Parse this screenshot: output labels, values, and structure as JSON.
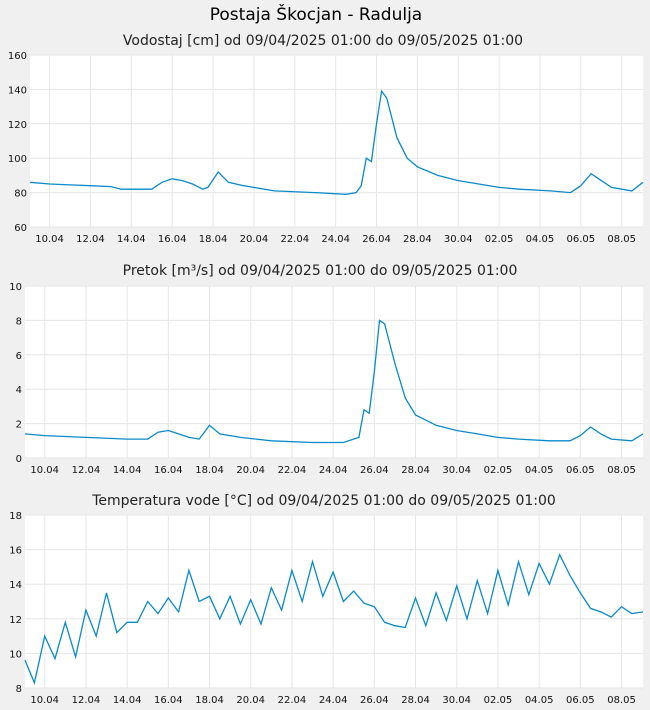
{
  "figure": {
    "title": "Postaja Škocjan - Radulja"
  },
  "style": {
    "background": "#f0f0f0",
    "plot_background": "#ffffff",
    "line_color": "#0a8acb",
    "grid_color": "#e6e6e6"
  },
  "x_ticks": [
    "10.04",
    "12.04",
    "14.04",
    "16.04",
    "18.04",
    "20.04",
    "22.04",
    "24.04",
    "26.04",
    "28.04",
    "30.04",
    "02.05",
    "04.05",
    "06.05",
    "08.05"
  ],
  "chart_data": [
    {
      "type": "line",
      "title": "Vodostaj [cm] od 09/04/2025 01:00 do 09/05/2025 01:00",
      "xlabel": "",
      "ylabel": "",
      "xlim": [
        "2025-04-09T01:00",
        "2025-05-09T01:00"
      ],
      "ylim": [
        60,
        160
      ],
      "y_ticks": [
        60,
        80,
        100,
        120,
        140,
        160
      ],
      "grid": true,
      "series": [
        {
          "x": [
            "2025-04-09T01:00",
            "2025-04-10T00:00",
            "2025-04-11T00:00",
            "2025-04-12T00:00",
            "2025-04-13T00:00",
            "2025-04-13T12:00",
            "2025-04-14T00:00",
            "2025-04-15T00:00",
            "2025-04-15T12:00",
            "2025-04-16T00:00",
            "2025-04-16T12:00",
            "2025-04-17T00:00",
            "2025-04-17T12:00",
            "2025-04-17T18:00",
            "2025-04-18T06:00",
            "2025-04-18T18:00",
            "2025-04-19T12:00",
            "2025-04-21T00:00",
            "2025-04-23T00:00",
            "2025-04-24T12:00",
            "2025-04-25T00:00",
            "2025-04-25T06:00",
            "2025-04-25T12:00",
            "2025-04-25T18:00",
            "2025-04-26T00:00",
            "2025-04-26T06:00",
            "2025-04-26T12:00",
            "2025-04-27T00:00",
            "2025-04-27T12:00",
            "2025-04-28T00:00",
            "2025-04-29T00:00",
            "2025-04-30T00:00",
            "2025-05-01T00:00",
            "2025-05-02T00:00",
            "2025-05-03T00:00",
            "2025-05-04T12:00",
            "2025-05-05T12:00",
            "2025-05-06T00:00",
            "2025-05-06T12:00",
            "2025-05-07T00:00",
            "2025-05-07T12:00",
            "2025-05-08T12:00",
            "2025-05-09T01:00"
          ],
          "y": [
            86,
            85,
            84.5,
            84,
            83.5,
            82,
            82,
            82,
            86,
            88,
            87,
            85,
            82,
            83,
            92,
            86,
            84,
            81,
            80,
            79,
            80,
            84,
            100,
            98,
            120,
            139,
            135,
            112,
            100,
            95,
            90,
            87,
            85,
            83,
            82,
            81,
            80,
            84,
            91,
            87,
            83,
            81,
            86
          ]
        }
      ]
    },
    {
      "type": "line",
      "title": "Pretok [m³/s] od 09/04/2025 01:00 do 09/05/2025 01:00",
      "xlabel": "",
      "ylabel": "",
      "xlim": [
        "2025-04-09T01:00",
        "2025-05-09T01:00"
      ],
      "ylim": [
        0,
        10
      ],
      "y_ticks": [
        0,
        2,
        4,
        6,
        8,
        10
      ],
      "grid": true,
      "series": [
        {
          "x": [
            "2025-04-09T01:00",
            "2025-04-10T00:00",
            "2025-04-12T00:00",
            "2025-04-14T00:00",
            "2025-04-15T00:00",
            "2025-04-15T12:00",
            "2025-04-16T00:00",
            "2025-04-16T12:00",
            "2025-04-17T00:00",
            "2025-04-17T12:00",
            "2025-04-18T00:00",
            "2025-04-18T12:00",
            "2025-04-19T12:00",
            "2025-04-21T00:00",
            "2025-04-23T00:00",
            "2025-04-24T12:00",
            "2025-04-25T06:00",
            "2025-04-25T12:00",
            "2025-04-25T18:00",
            "2025-04-26T00:00",
            "2025-04-26T06:00",
            "2025-04-26T12:00",
            "2025-04-27T00:00",
            "2025-04-27T12:00",
            "2025-04-28T00:00",
            "2025-04-29T00:00",
            "2025-04-30T00:00",
            "2025-05-01T00:00",
            "2025-05-02T00:00",
            "2025-05-03T00:00",
            "2025-05-04T12:00",
            "2025-05-05T12:00",
            "2025-05-06T00:00",
            "2025-05-06T12:00",
            "2025-05-07T00:00",
            "2025-05-07T12:00",
            "2025-05-08T12:00",
            "2025-05-09T01:00"
          ],
          "y": [
            1.4,
            1.3,
            1.2,
            1.1,
            1.1,
            1.5,
            1.6,
            1.4,
            1.2,
            1.1,
            1.9,
            1.4,
            1.2,
            1.0,
            0.9,
            0.9,
            1.2,
            2.8,
            2.6,
            5.0,
            8.0,
            7.8,
            5.5,
            3.5,
            2.5,
            1.9,
            1.6,
            1.4,
            1.2,
            1.1,
            1.0,
            1.0,
            1.3,
            1.8,
            1.4,
            1.1,
            1.0,
            1.4
          ]
        }
      ]
    },
    {
      "type": "line",
      "title": "Temperatura vode [°C] od 09/04/2025 01:00 do 09/05/2025 01:00",
      "xlabel": "",
      "ylabel": "",
      "xlim": [
        "2025-04-09T01:00",
        "2025-05-09T01:00"
      ],
      "ylim": [
        8,
        18
      ],
      "y_ticks": [
        8,
        10,
        12,
        14,
        16,
        18
      ],
      "grid": true,
      "series": [
        {
          "x": [
            "2025-04-09T01:00",
            "2025-04-09T12:00",
            "2025-04-10T00:00",
            "2025-04-10T12:00",
            "2025-04-11T00:00",
            "2025-04-11T12:00",
            "2025-04-12T00:00",
            "2025-04-12T12:00",
            "2025-04-13T00:00",
            "2025-04-13T12:00",
            "2025-04-14T00:00",
            "2025-04-14T12:00",
            "2025-04-15T00:00",
            "2025-04-15T12:00",
            "2025-04-16T00:00",
            "2025-04-16T12:00",
            "2025-04-17T00:00",
            "2025-04-17T12:00",
            "2025-04-18T00:00",
            "2025-04-18T12:00",
            "2025-04-19T00:00",
            "2025-04-19T12:00",
            "2025-04-20T00:00",
            "2025-04-20T12:00",
            "2025-04-21T00:00",
            "2025-04-21T12:00",
            "2025-04-22T00:00",
            "2025-04-22T12:00",
            "2025-04-23T00:00",
            "2025-04-23T12:00",
            "2025-04-24T00:00",
            "2025-04-24T12:00",
            "2025-04-25T00:00",
            "2025-04-25T12:00",
            "2025-04-26T00:00",
            "2025-04-26T12:00",
            "2025-04-27T00:00",
            "2025-04-27T12:00",
            "2025-04-28T00:00",
            "2025-04-28T12:00",
            "2025-04-29T00:00",
            "2025-04-29T12:00",
            "2025-04-30T00:00",
            "2025-04-30T12:00",
            "2025-05-01T00:00",
            "2025-05-01T12:00",
            "2025-05-02T00:00",
            "2025-05-02T12:00",
            "2025-05-03T00:00",
            "2025-05-03T12:00",
            "2025-05-04T00:00",
            "2025-05-04T12:00",
            "2025-05-05T00:00",
            "2025-05-05T12:00",
            "2025-05-06T00:00",
            "2025-05-06T12:00",
            "2025-05-07T00:00",
            "2025-05-07T12:00",
            "2025-05-08T00:00",
            "2025-05-08T12:00",
            "2025-05-09T01:00"
          ],
          "y": [
            9.6,
            8.3,
            11.0,
            9.7,
            11.8,
            9.8,
            12.5,
            11.0,
            13.5,
            11.2,
            11.8,
            11.8,
            13.0,
            12.3,
            13.2,
            12.4,
            14.8,
            13.0,
            13.3,
            12.0,
            13.3,
            11.7,
            13.1,
            11.7,
            13.8,
            12.5,
            14.8,
            13.0,
            15.3,
            13.3,
            14.7,
            13.0,
            13.6,
            12.9,
            12.7,
            11.8,
            11.6,
            11.5,
            13.2,
            11.6,
            13.5,
            11.9,
            13.9,
            12.0,
            14.2,
            12.3,
            14.8,
            12.8,
            15.3,
            13.4,
            15.2,
            14.0,
            15.7,
            14.5,
            13.5,
            12.6,
            12.4,
            12.1,
            12.7,
            12.3,
            12.4
          ]
        }
      ]
    }
  ]
}
